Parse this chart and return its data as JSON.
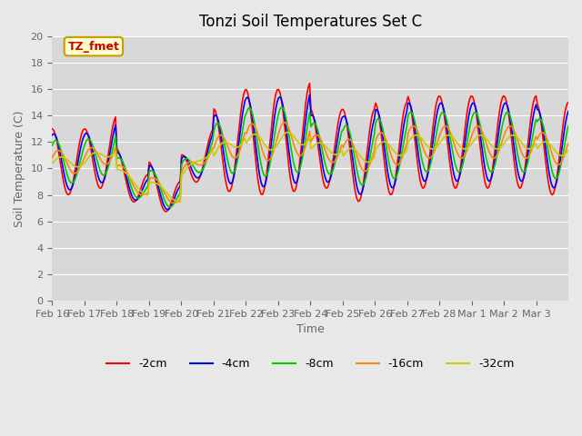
{
  "title": "Tonzi Soil Temperatures Set C",
  "xlabel": "Time",
  "ylabel": "Soil Temperature (C)",
  "ylim": [
    0,
    20
  ],
  "yticks": [
    0,
    2,
    4,
    6,
    8,
    10,
    12,
    14,
    16,
    18,
    20
  ],
  "background_color": "#e8e8e8",
  "plot_bg_color": "#d8d8d8",
  "grid_color": "#ffffff",
  "annotation_text": "TZ_fmet",
  "annotation_bg": "#ffffcc",
  "annotation_border": "#cc9900",
  "annotation_text_color": "#cc0000",
  "series": {
    "-2cm": {
      "color": "#ff0000",
      "lw": 1.2
    },
    "-4cm": {
      "color": "#0000ff",
      "lw": 1.2
    },
    "-8cm": {
      "color": "#00cc00",
      "lw": 1.2
    },
    "-16cm": {
      "color": "#ff8800",
      "lw": 1.2
    },
    "-32cm": {
      "color": "#cccc00",
      "lw": 1.2
    }
  },
  "xtick_labels": [
    "Feb 16",
    "Feb 17",
    "Feb 18",
    "Feb 19",
    "Feb 20",
    "Feb 21",
    "Feb 22",
    "Feb 23",
    "Feb 24",
    "Feb 25",
    "Feb 26",
    "Feb 27",
    "Feb 28",
    "Mar 1",
    "Mar 2",
    "Mar 3"
  ],
  "num_days": 16,
  "points_per_day": 24
}
